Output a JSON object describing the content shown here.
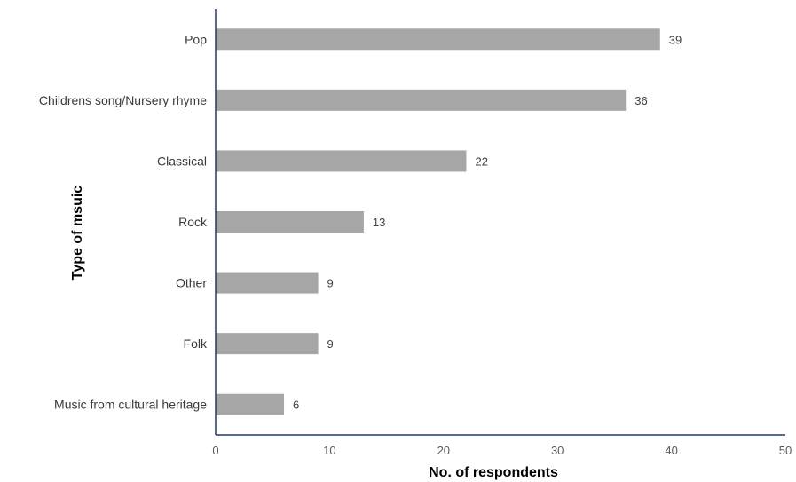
{
  "chart_data": {
    "type": "bar",
    "orientation": "horizontal",
    "categories": [
      "Pop",
      "Childrens song/Nursery rhyme",
      "Classical",
      "Rock",
      "Other",
      "Folk",
      "Music from cultural heritage"
    ],
    "values": [
      39,
      36,
      22,
      13,
      9,
      9,
      6
    ],
    "data_labels": [
      "39",
      "36",
      "22",
      "13",
      "9",
      "9",
      "6"
    ],
    "xlabel": "No. of respondents",
    "ylabel": "Type of msuic",
    "xlim": [
      0,
      50
    ],
    "xticks": [
      0,
      10,
      20,
      30,
      40,
      50
    ],
    "xtick_labels": [
      "0",
      "10",
      "20",
      "30",
      "40",
      "50"
    ],
    "grid": false,
    "legend": "none",
    "colors": {
      "bar": "#a6a6a6",
      "axis": "#1f3864"
    }
  }
}
